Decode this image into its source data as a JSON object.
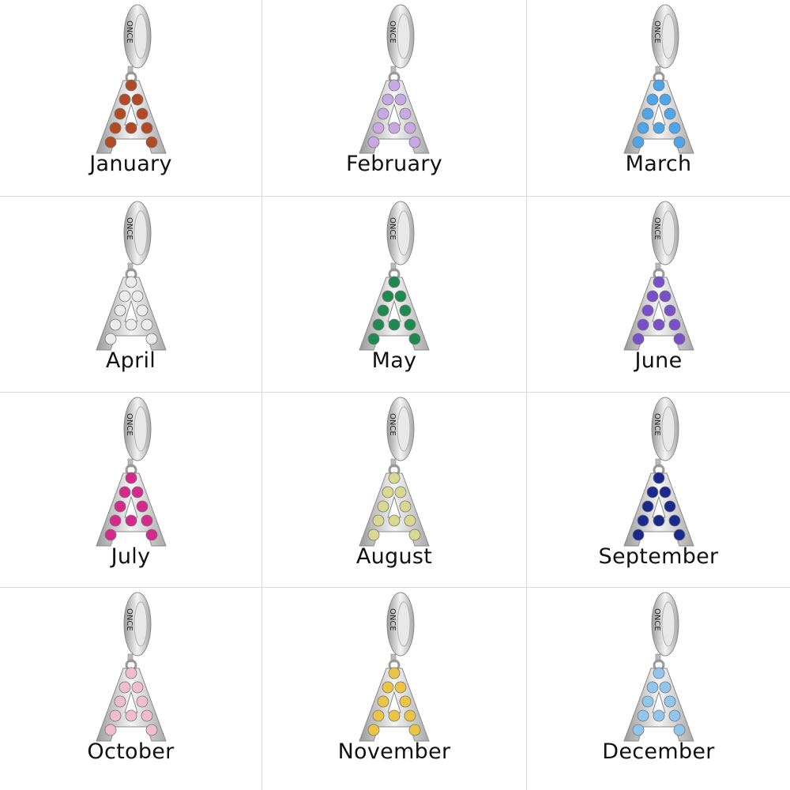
{
  "brand_engraving": "ONCE",
  "items": [
    {
      "label": "January",
      "stone_color": "#b24a25"
    },
    {
      "label": "February",
      "stone_color": "#c8a8e2"
    },
    {
      "label": "March",
      "stone_color": "#4ea6e8"
    },
    {
      "label": "April",
      "stone_color": "#ececec"
    },
    {
      "label": "May",
      "stone_color": "#1f8a50"
    },
    {
      "label": "June",
      "stone_color": "#7a4fca"
    },
    {
      "label": "July",
      "stone_color": "#d42a8c"
    },
    {
      "label": "August",
      "stone_color": "#d8d890"
    },
    {
      "label": "September",
      "stone_color": "#1a2a8a"
    },
    {
      "label": "October",
      "stone_color": "#f2bccf"
    },
    {
      "label": "November",
      "stone_color": "#ecc444"
    },
    {
      "label": "December",
      "stone_color": "#90c6ee"
    }
  ]
}
